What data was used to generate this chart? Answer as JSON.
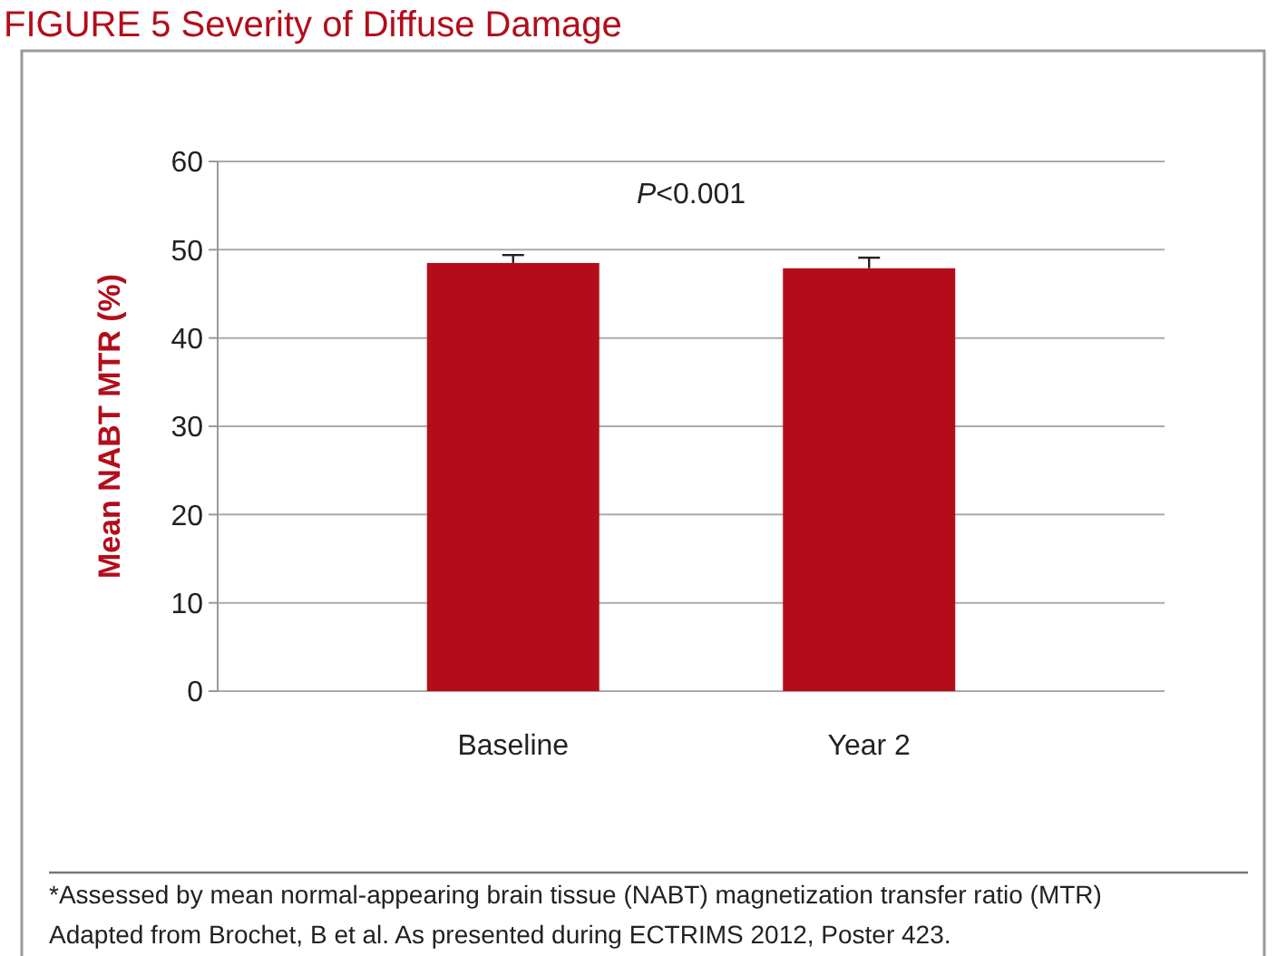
{
  "chart_data": {
    "type": "bar",
    "title": "FIGURE 5 Severity of Diffuse Damage",
    "ylabel": "Mean NABT MTR (%)",
    "categories": [
      "Baseline",
      "Year 2"
    ],
    "values": [
      48.5,
      47.9
    ],
    "color": "#b30d1b",
    "errors": [
      [
        48.5,
        49.4
      ],
      [
        47.9,
        49.1
      ]
    ],
    "ylim": [
      0,
      60
    ],
    "yticks": [
      0,
      10,
      20,
      30,
      40,
      50,
      60
    ],
    "grid": "y",
    "annotations": [
      "P<0.001",
      "*Assessed by mean normal-appearing brain tissue (NABT) magnetization transfer ratio (MTR)",
      "Adapted from Brochet, B et al. As presented during ECTRIMS 2012, Poster 423."
    ]
  }
}
